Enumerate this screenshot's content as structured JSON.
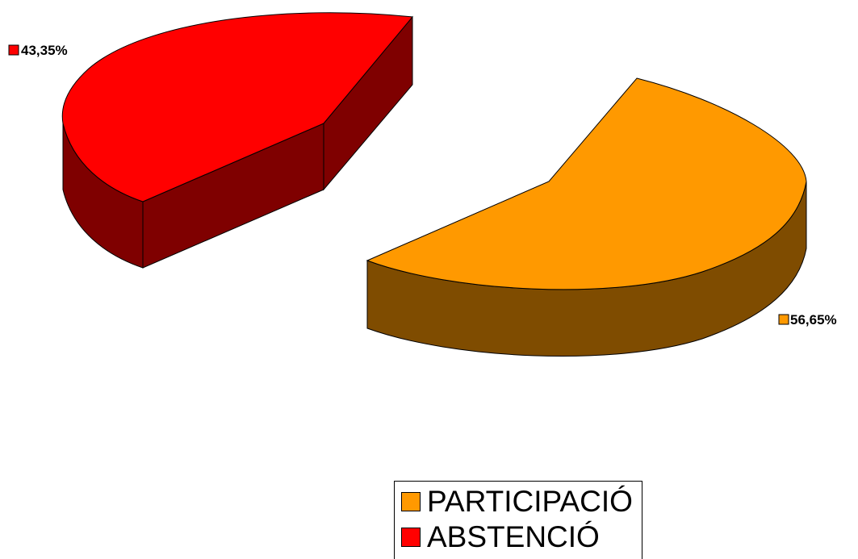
{
  "chart_data": {
    "type": "pie",
    "style": "3d-exploded",
    "slices": [
      {
        "name": "PARTICIPACIÓ",
        "value": 56.65,
        "label": "56,65%",
        "color": "#FF9900",
        "side_color": "#7F4C00"
      },
      {
        "name": "ABSTENCIÓ",
        "value": 43.35,
        "label": "43,35%",
        "color": "#FF0000",
        "side_color": "#7F0000"
      }
    ],
    "legend": {
      "position": "bottom",
      "border": true
    }
  }
}
